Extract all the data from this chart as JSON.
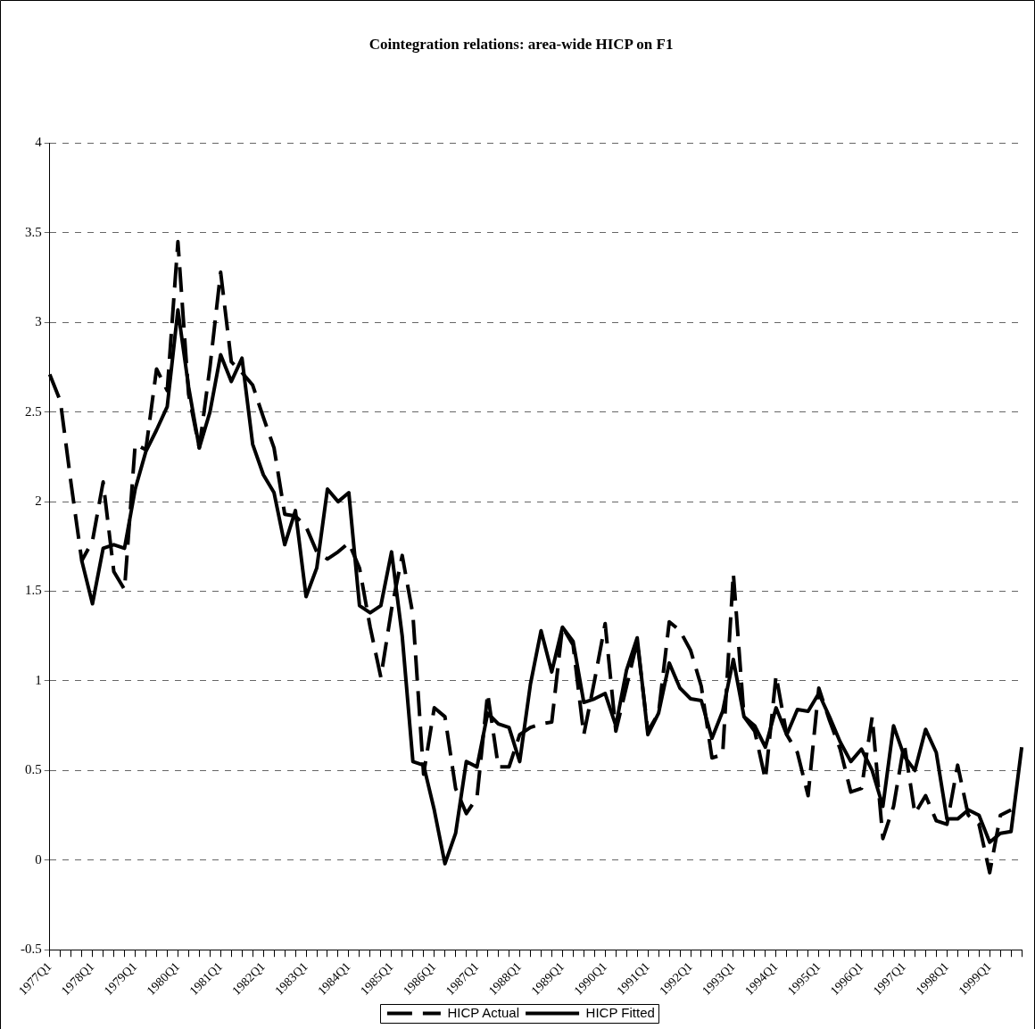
{
  "chart_data": {
    "type": "line",
    "title": "Cointegration relations: area-wide HICP on F1",
    "categories": [
      "1977Q1",
      null,
      null,
      null,
      "1978Q1",
      null,
      null,
      null,
      "1979Q1",
      null,
      null,
      null,
      "1980Q1",
      null,
      null,
      null,
      "1981Q1",
      null,
      null,
      null,
      "1982Q1",
      null,
      null,
      null,
      "1983Q1",
      null,
      null,
      null,
      "1984Q1",
      null,
      null,
      null,
      "1985Q1",
      null,
      null,
      null,
      "1986Q1",
      null,
      null,
      null,
      "1987Q1",
      null,
      null,
      null,
      "1988Q1",
      null,
      null,
      null,
      "1989Q1",
      null,
      null,
      null,
      "1990Q1",
      null,
      null,
      null,
      "1991Q1",
      null,
      null,
      null,
      "1992Q1",
      null,
      null,
      null,
      "1993Q1",
      null,
      null,
      null,
      "1994Q1",
      null,
      null,
      null,
      "1995Q1",
      null,
      null,
      null,
      "1996Q1",
      null,
      null,
      null,
      "1997Q1",
      null,
      null,
      null,
      "1998Q1",
      null,
      null,
      null,
      "1999Q1",
      null,
      null,
      null
    ],
    "series": [
      {
        "name": "HICP Actual",
        "color": "#000000",
        "line_style": "dashed",
        "values": [
          2.71,
          2.56,
          2.1,
          1.67,
          1.78,
          2.11,
          1.61,
          1.51,
          2.32,
          2.29,
          2.74,
          2.62,
          3.45,
          2.6,
          2.3,
          2.75,
          3.28,
          2.78,
          2.72,
          2.65,
          2.47,
          2.3,
          1.93,
          1.92,
          1.86,
          1.72,
          1.68,
          1.72,
          1.77,
          1.63,
          1.3,
          1.02,
          1.4,
          1.7,
          1.37,
          0.48,
          0.85,
          0.8,
          0.4,
          0.26,
          0.35,
          0.93,
          0.52,
          0.52,
          0.7,
          0.74,
          0.76,
          0.77,
          1.3,
          1.2,
          0.7,
          1.0,
          1.32,
          0.72,
          0.97,
          1.22,
          0.72,
          0.82,
          1.33,
          1.28,
          1.17,
          0.97,
          0.57,
          0.59,
          1.6,
          0.8,
          0.72,
          0.45,
          1.03,
          0.7,
          0.6,
          0.36,
          0.96,
          0.78,
          0.62,
          0.38,
          0.4,
          0.8,
          0.12,
          0.3,
          0.65,
          0.26,
          0.36,
          0.22,
          0.2,
          0.53,
          0.25,
          0.2,
          -0.07,
          0.25,
          0.28,
          null
        ]
      },
      {
        "name": "HICP Fitted",
        "color": "#000000",
        "line_style": "solid",
        "values": [
          null,
          null,
          null,
          1.67,
          1.43,
          1.74,
          1.76,
          1.74,
          2.07,
          2.28,
          2.4,
          2.53,
          3.07,
          2.64,
          2.3,
          2.5,
          2.82,
          2.67,
          2.8,
          2.32,
          2.15,
          2.05,
          1.76,
          1.95,
          1.47,
          1.63,
          2.07,
          2.0,
          2.05,
          1.42,
          1.38,
          1.42,
          1.72,
          1.25,
          0.55,
          0.53,
          0.28,
          -0.02,
          0.15,
          0.55,
          0.52,
          0.82,
          0.76,
          0.74,
          0.55,
          0.98,
          1.28,
          1.05,
          1.3,
          1.22,
          0.88,
          0.9,
          0.93,
          0.75,
          1.06,
          1.24,
          0.7,
          0.82,
          1.1,
          0.96,
          0.9,
          0.89,
          0.68,
          0.83,
          1.12,
          0.8,
          0.75,
          0.63,
          0.85,
          0.7,
          0.84,
          0.83,
          0.93,
          0.8,
          0.66,
          0.55,
          0.62,
          0.5,
          0.3,
          0.75,
          0.58,
          0.5,
          0.73,
          0.6,
          0.23,
          0.23,
          0.28,
          0.25,
          0.1,
          0.15,
          0.16,
          0.63
        ]
      }
    ],
    "ylim": [
      -0.5,
      4
    ],
    "yticks": [
      -0.5,
      0,
      0.5,
      1,
      1.5,
      2,
      2.5,
      3,
      3.5,
      4
    ],
    "grid": "y",
    "legend": "bottom",
    "marker": "none"
  }
}
